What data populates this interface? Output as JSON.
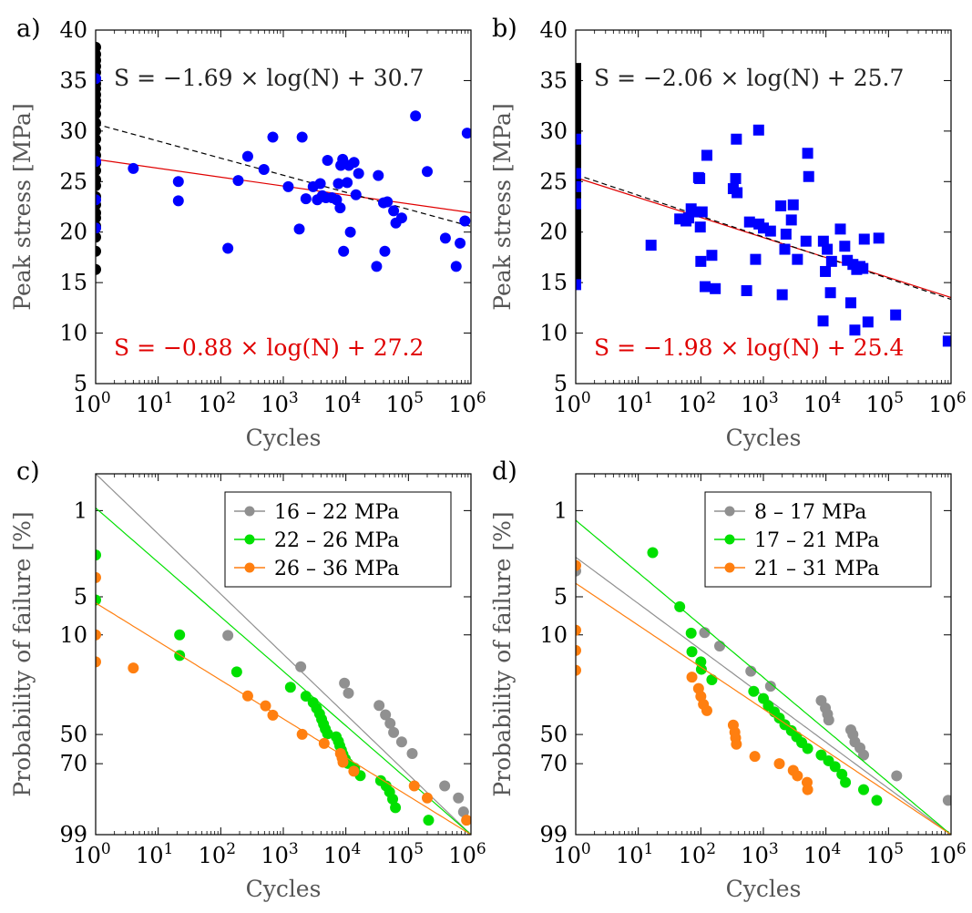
{
  "panels": [
    {
      "label": "a)",
      "type": "scatter",
      "xlabel": "Cycles",
      "ylabel": "Peak stress [MPa]",
      "xlog": true,
      "xlim": [
        1,
        1000000
      ],
      "ylim": [
        5,
        40
      ],
      "yticks": [
        5,
        10,
        15,
        20,
        25,
        30,
        35,
        40
      ],
      "xticks": [
        {
          "e": "0"
        },
        {
          "e": "1"
        },
        {
          "e": "2"
        },
        {
          "e": "3"
        },
        {
          "e": "4"
        },
        {
          "e": "5"
        },
        {
          "e": "6"
        }
      ],
      "marker": "circle",
      "runouts": [
        38.3,
        37.6,
        37.0,
        36.4,
        35.8,
        35.2,
        34.7,
        34.2,
        33.6,
        33.0,
        32.4,
        31.7,
        30.8,
        30.0,
        29.2,
        28.3,
        27.6,
        26.8,
        26.1,
        25.2,
        24.6,
        23.5,
        22.7,
        21.9,
        21.4,
        20.6,
        19.5,
        18.1,
        16.3
      ],
      "runouts_blue": [
        35.2,
        27.0,
        23.2,
        20.4
      ],
      "failures": [
        [
          4,
          26.3
        ],
        [
          21,
          25.0
        ],
        [
          21,
          23.1
        ],
        [
          130,
          18.4
        ],
        [
          190,
          25.1
        ],
        [
          270,
          27.5
        ],
        [
          490,
          26.2
        ],
        [
          680,
          29.4
        ],
        [
          1200,
          24.5
        ],
        [
          1800,
          20.3
        ],
        [
          2000,
          29.4
        ],
        [
          2300,
          23.3
        ],
        [
          3000,
          24.5
        ],
        [
          3500,
          23.2
        ],
        [
          3900,
          24.8
        ],
        [
          4200,
          23.6
        ],
        [
          4800,
          23.4
        ],
        [
          5100,
          27.1
        ],
        [
          6000,
          23.4
        ],
        [
          7100,
          23.2
        ],
        [
          7600,
          24.8
        ],
        [
          8100,
          22.4
        ],
        [
          8300,
          26.6
        ],
        [
          8900,
          27.2
        ],
        [
          9200,
          18.1
        ],
        [
          10500,
          24.9
        ],
        [
          11200,
          26.6
        ],
        [
          11800,
          20.0
        ],
        [
          13500,
          26.9
        ],
        [
          14500,
          23.7
        ],
        [
          16000,
          25.8
        ],
        [
          31000,
          16.6
        ],
        [
          33000,
          25.6
        ],
        [
          40000,
          22.9
        ],
        [
          42000,
          18.1
        ],
        [
          46000,
          23.0
        ],
        [
          58000,
          22.1
        ],
        [
          63000,
          20.9
        ],
        [
          78000,
          21.4
        ],
        [
          130000,
          31.5
        ],
        [
          200000,
          26.0
        ],
        [
          390000,
          19.4
        ],
        [
          580000,
          16.6
        ],
        [
          670000,
          18.9
        ],
        [
          800000,
          21.1
        ],
        [
          870000,
          29.8
        ]
      ],
      "fits": [
        {
          "color": "#e00000",
          "dashed": false,
          "slope": -0.88,
          "intercept": 27.2,
          "label": "S = −0.88 × log(N) + 27.2"
        },
        {
          "color": "#000000",
          "dashed": true,
          "slope": -1.69,
          "intercept": 30.7,
          "label": "S = −1.69 × log(N) + 30.7"
        }
      ]
    },
    {
      "label": "b)",
      "type": "scatter",
      "xlabel": "Cycles",
      "ylabel": "Peak stress [MPa]",
      "xlog": true,
      "xlim": [
        1,
        1000000
      ],
      "ylim": [
        5,
        40
      ],
      "yticks": [
        5,
        10,
        15,
        20,
        25,
        30,
        35,
        40
      ],
      "xticks": [
        {
          "e": "0"
        },
        {
          "e": "1"
        },
        {
          "e": "2"
        },
        {
          "e": "3"
        },
        {
          "e": "4"
        },
        {
          "e": "5"
        },
        {
          "e": "6"
        }
      ],
      "marker": "square",
      "runouts": [
        36.2,
        35.6,
        35.0,
        34.4,
        33.8,
        33.2,
        32.6,
        32.0,
        31.4,
        30.8,
        30.2,
        29.6,
        29.0,
        28.4,
        27.8,
        27.2,
        26.6,
        26.0,
        25.4,
        24.8,
        24.2,
        23.6,
        23.0,
        22.4,
        21.8,
        21.2,
        20.6,
        20.0,
        19.4,
        18.8,
        18.2,
        17.6,
        17.0,
        16.4,
        15.8
      ],
      "runouts_blue": [
        29.2,
        25.8,
        24.5,
        22.8,
        14.8
      ],
      "failures": [
        [
          16,
          18.7
        ],
        [
          46,
          21.3
        ],
        [
          58,
          21.1
        ],
        [
          64,
          21.4
        ],
        [
          70,
          22.3
        ],
        [
          82,
          22.0
        ],
        [
          92,
          25.4
        ],
        [
          96,
          25.3
        ],
        [
          98,
          20.5
        ],
        [
          100,
          17.1
        ],
        [
          105,
          22.0
        ],
        [
          117,
          14.6
        ],
        [
          125,
          27.6
        ],
        [
          150,
          17.7
        ],
        [
          170,
          14.4
        ],
        [
          330,
          24.3
        ],
        [
          360,
          25.3
        ],
        [
          370,
          29.2
        ],
        [
          380,
          23.9
        ],
        [
          540,
          14.2
        ],
        [
          600,
          21.0
        ],
        [
          750,
          17.3
        ],
        [
          840,
          30.1
        ],
        [
          850,
          20.8
        ],
        [
          1000,
          20.4
        ],
        [
          1300,
          20.1
        ],
        [
          1900,
          22.6
        ],
        [
          2000,
          13.8
        ],
        [
          2200,
          18.3
        ],
        [
          2300,
          19.8
        ],
        [
          2800,
          21.2
        ],
        [
          3000,
          22.7
        ],
        [
          3500,
          17.3
        ],
        [
          4800,
          19.1
        ],
        [
          5100,
          27.8
        ],
        [
          5300,
          25.5
        ],
        [
          9000,
          11.2
        ],
        [
          9100,
          19.1
        ],
        [
          9800,
          16.1
        ],
        [
          10500,
          18.3
        ],
        [
          11800,
          14.0
        ],
        [
          12300,
          17.1
        ],
        [
          17000,
          20.3
        ],
        [
          20000,
          18.6
        ],
        [
          22000,
          17.2
        ],
        [
          25000,
          13.0
        ],
        [
          27000,
          16.8
        ],
        [
          29000,
          10.3
        ],
        [
          31000,
          16.3
        ],
        [
          35000,
          16.6
        ],
        [
          39000,
          16.4
        ],
        [
          41000,
          19.3
        ],
        [
          47000,
          11.1
        ],
        [
          70000,
          19.4
        ],
        [
          130000,
          11.8
        ],
        [
          900000,
          9.2
        ]
      ],
      "fits": [
        {
          "color": "#e00000",
          "dashed": false,
          "slope": -1.98,
          "intercept": 25.4,
          "label": "S = −1.98 × log(N) + 25.4"
        },
        {
          "color": "#000000",
          "dashed": true,
          "slope": -2.06,
          "intercept": 25.7,
          "label": "S = −2.06 × log(N) + 25.7"
        }
      ]
    },
    {
      "label": "c)",
      "type": "weibull",
      "xlabel": "Cycles",
      "ylabel": "Probability of failure [%]",
      "xlog": true,
      "xlim": [
        1,
        1000000
      ],
      "yticks": [
        1,
        5,
        10,
        50,
        70,
        99
      ],
      "xticks": [
        {
          "e": "0"
        },
        {
          "e": "1"
        },
        {
          "e": "2"
        },
        {
          "e": "3"
        },
        {
          "e": "4"
        },
        {
          "e": "5"
        },
        {
          "e": "6"
        }
      ],
      "legend_position": "top-right",
      "series": [
        {
          "name": "16 – 22 MPa",
          "color": "#909090",
          "fit": [
            [
              1,
              0.5
            ],
            [
              1000000,
              99
            ]
          ],
          "points": [
            [
              130,
              10.1
            ],
            [
              1900,
              17.5
            ],
            [
              9500,
              23.1
            ],
            [
              11000,
              27.2
            ],
            [
              34000,
              33
            ],
            [
              43000,
              38
            ],
            [
              51000,
              43
            ],
            [
              58000,
              48.7
            ],
            [
              78000,
              55
            ],
            [
              115000,
              63
            ],
            [
              380000,
              84
            ],
            [
              630000,
              90
            ],
            [
              760000,
              95
            ]
          ]
        },
        {
          "name": "22 – 26 MPa",
          "color": "#00e000",
          "fit": [
            [
              1,
              0.95
            ],
            [
              1000000,
              99
            ]
          ],
          "points": [
            [
              1,
              2.3
            ],
            [
              1,
              5.3
            ],
            [
              22,
              10.0
            ],
            [
              22,
              14.4
            ],
            [
              180,
              19.1
            ],
            [
              1300,
              24.7
            ],
            [
              2300,
              28.5
            ],
            [
              3000,
              31.5
            ],
            [
              3400,
              34.4
            ],
            [
              3800,
              37.4
            ],
            [
              4100,
              40.5
            ],
            [
              4400,
              43.5
            ],
            [
              4700,
              46.5
            ],
            [
              5100,
              49.5
            ],
            [
              7000,
              51.5
            ],
            [
              7600,
              54.6
            ],
            [
              8000,
              57.6
            ],
            [
              8500,
              60.6
            ],
            [
              9000,
              63.6
            ],
            [
              9800,
              66.8
            ],
            [
              10800,
              69.8
            ],
            [
              13800,
              73
            ],
            [
              17000,
              77.9
            ],
            [
              36000,
              81
            ],
            [
              44000,
              84
            ],
            [
              50000,
              87.2
            ],
            [
              56000,
              90.5
            ],
            [
              62000,
              93.7
            ],
            [
              210000,
              97
            ]
          ]
        },
        {
          "name": "26 – 36 MPa",
          "color": "#ff7f10",
          "fit": [
            [
              1,
              5.6
            ],
            [
              1000000,
              99
            ]
          ],
          "points": [
            [
              1,
              3.5
            ],
            [
              1,
              10.0
            ],
            [
              1,
              16.1
            ],
            [
              4,
              17.9
            ],
            [
              270,
              28.4
            ],
            [
              520,
              33.2
            ],
            [
              680,
              38.2
            ],
            [
              2000,
              49.9
            ],
            [
              4500,
              56
            ],
            [
              8200,
              63
            ],
            [
              8700,
              66
            ],
            [
              9000,
              69
            ],
            [
              13400,
              75
            ],
            [
              124000,
              84
            ],
            [
              200000,
              90
            ],
            [
              850000,
              97
            ]
          ]
        }
      ]
    },
    {
      "label": "d)",
      "type": "weibull",
      "xlabel": "Cycles",
      "ylabel": "Probability of failure [%]",
      "xlog": true,
      "xlim": [
        1,
        1000000
      ],
      "yticks": [
        1,
        5,
        10,
        50,
        70,
        99
      ],
      "xticks": [
        {
          "e": "0"
        },
        {
          "e": "1"
        },
        {
          "e": "2"
        },
        {
          "e": "3"
        },
        {
          "e": "4"
        },
        {
          "e": "5"
        },
        {
          "e": "6"
        }
      ],
      "legend_position": "top-right",
      "series": [
        {
          "name": "8 – 17 MPa",
          "color": "#909090",
          "fit": [
            [
              1,
              2.4
            ],
            [
              1000000,
              99
            ]
          ],
          "points": [
            [
              1,
              3.1
            ],
            [
              115,
              9.6
            ],
            [
              200,
              12.2
            ],
            [
              630,
              18.9
            ],
            [
              1300,
              24.3
            ],
            [
              8400,
              30.6
            ],
            [
              9800,
              34.3
            ],
            [
              10600,
              37.6
            ],
            [
              11100,
              41
            ],
            [
              25000,
              47
            ],
            [
              27000,
              50
            ],
            [
              29000,
              55
            ],
            [
              35000,
              59
            ],
            [
              40000,
              64
            ],
            [
              135000,
              78
            ],
            [
              900000,
              91
            ]
          ]
        },
        {
          "name": "17 – 21 MPa",
          "color": "#00e000",
          "fit": [
            [
              1,
              1.2
            ],
            [
              1000000,
              99
            ]
          ],
          "points": [
            [
              17,
              2.2
            ],
            [
              46,
              6.0
            ],
            [
              70,
              9.7
            ],
            [
              72,
              13.5
            ],
            [
              100,
              16.1
            ],
            [
              102,
              18.3
            ],
            [
              150,
              21.8
            ],
            [
              700,
              26.4
            ],
            [
              1000,
              29.6
            ],
            [
              1200,
              33.2
            ],
            [
              1500,
              36.4
            ],
            [
              1800,
              39.8
            ],
            [
              2200,
              43.8
            ],
            [
              2800,
              47.5
            ],
            [
              3400,
              51.5
            ],
            [
              4100,
              55.4
            ],
            [
              5100,
              59.5
            ],
            [
              8400,
              64
            ],
            [
              11000,
              68
            ],
            [
              14000,
              72
            ],
            [
              18000,
              77
            ],
            [
              20500,
              82
            ],
            [
              40000,
              86
            ],
            [
              65000,
              91
            ]
          ]
        },
        {
          "name": "21 – 31 MPa",
          "color": "#ff7f10",
          "fit": [
            [
              1,
              3.9
            ],
            [
              1000000,
              99
            ]
          ],
          "points": [
            [
              1,
              2.8
            ],
            [
              1,
              9.2
            ],
            [
              1,
              13.2
            ],
            [
              1,
              18.6
            ],
            [
              72,
              20.9
            ],
            [
              92,
              25.2
            ],
            [
              100,
              28.6
            ],
            [
              110,
              32.4
            ],
            [
              125,
              35.7
            ],
            [
              330,
              44.0
            ],
            [
              350,
              48.5
            ],
            [
              360,
              52.3
            ],
            [
              370,
              56.5
            ],
            [
              730,
              65
            ],
            [
              1800,
              70
            ],
            [
              3000,
              74.5
            ],
            [
              3500,
              78
            ],
            [
              5000,
              82
            ],
            [
              5100,
              86
            ]
          ]
        }
      ]
    }
  ]
}
